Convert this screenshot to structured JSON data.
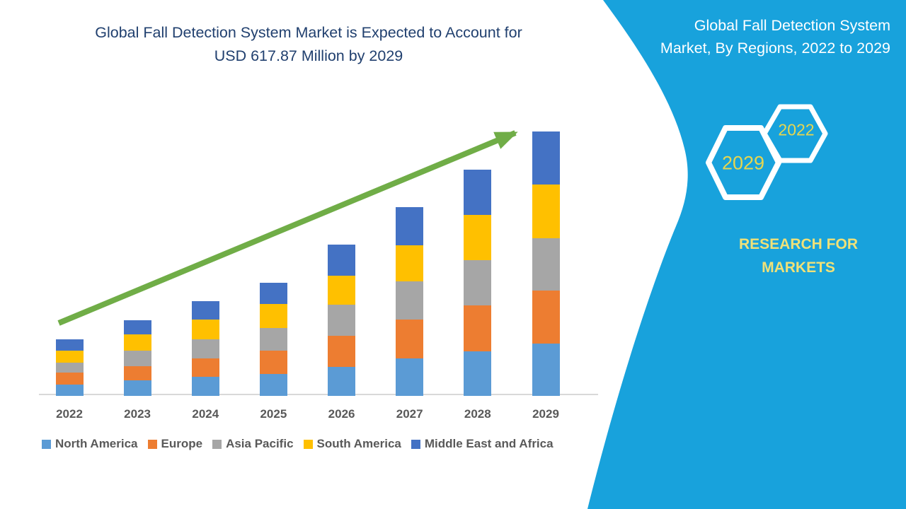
{
  "header": {
    "title_line1": "Global Fall Detection System Market is Expected to Account for",
    "title_line2": "USD 617.87 Million by 2029"
  },
  "chart_data": {
    "type": "bar",
    "stacked": true,
    "title": "Global Fall Detection System Market is Expected to Account for USD 617.87 Million by 2029",
    "unit": "USD Million",
    "categories": [
      "2022",
      "2023",
      "2024",
      "2025",
      "2026",
      "2027",
      "2028",
      "2029"
    ],
    "series": [
      {
        "name": "North America",
        "color": "#5B9BD5",
        "values": [
          26,
          36,
          44,
          51,
          68,
          88,
          104,
          123.1
        ]
      },
      {
        "name": "Europe",
        "color": "#ED7D31",
        "values": [
          28,
          34,
          44,
          55,
          72,
          91,
          107,
          123.1
        ]
      },
      {
        "name": "Asia Pacific",
        "color": "#A6A6A6",
        "values": [
          24,
          36,
          44,
          52,
          73,
          89,
          106,
          122.3
        ]
      },
      {
        "name": "South America",
        "color": "#FFC000",
        "values": [
          28,
          38,
          46,
          56,
          68,
          84,
          106,
          125.6
        ]
      },
      {
        "name": "Middle East and Africa",
        "color": "#4472C4",
        "values": [
          26,
          33,
          44,
          51,
          72,
          89,
          105,
          123.8
        ]
      }
    ],
    "totals": [
      132,
      177,
      222,
      265,
      353,
      441,
      528,
      617.87
    ],
    "ylim": [
      0,
      620
    ],
    "grid": false,
    "y_axis_visible": false,
    "legend_position": "bottom",
    "annotations": [
      "upward green trend arrow from 2022 to 2029"
    ]
  },
  "side_panel": {
    "title": "Global Fall Detection System Market, By Regions, 2022 to 2029",
    "hexagon_back_label": "2022",
    "hexagon_front_label": "2029",
    "brand": "RESEARCH FOR MARKETS"
  },
  "colors": {
    "chart_title": "#21406F",
    "axis_text": "#595959",
    "axis_line": "#D9D9D9",
    "trend_arrow": "#70AD47",
    "panel_background": "#18A2DC",
    "panel_title_text": "#FFFFFF",
    "hexagon_outline": "#FFFFFF",
    "hexagon_year_text": "#E7D64F",
    "brand_text": "#F0E178"
  }
}
